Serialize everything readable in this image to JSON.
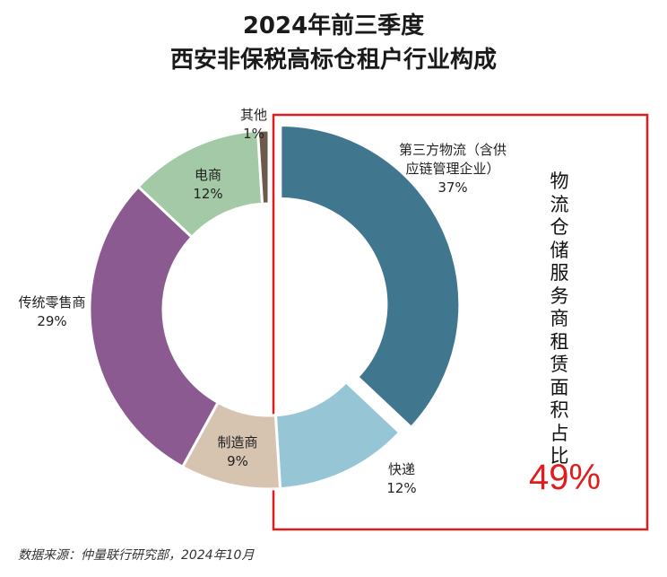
{
  "title_line1": "2024年前三季度",
  "title_line2": "西安非保税高标仓租户行业构成",
  "side_label": "物流仓储服务商租赁面积占比",
  "side_value": "49%",
  "source": "数据来源：仲量联行研究部，2024年10月",
  "chart_data": {
    "type": "pie",
    "title": "2024年前三季度 西安非保税高标仓租户行业构成",
    "slices": [
      {
        "label": [
          "第三方物流（含供",
          "应链管理企业）"
        ],
        "value": 37,
        "pct": "37%",
        "color": "#41778e",
        "exploded": true
      },
      {
        "label": [
          "快递"
        ],
        "value": 12,
        "pct": "12%",
        "color": "#96c6d6"
      },
      {
        "label": [
          "制造商"
        ],
        "value": 9,
        "pct": "9%",
        "color": "#d6c4b1"
      },
      {
        "label": [
          "传统零售商"
        ],
        "value": 29,
        "pct": "29%",
        "color": "#8b5a91"
      },
      {
        "label": [
          "电商"
        ],
        "value": 12,
        "pct": "12%",
        "color": "#a3c9a6"
      },
      {
        "label": [
          "其他"
        ],
        "value": 1,
        "pct": "1%",
        "color": "#6e5a4c"
      }
    ],
    "highlight_box": {
      "covers": [
        "第三方物流（含供应链管理企业）",
        "快递"
      ],
      "value": "49%"
    }
  }
}
